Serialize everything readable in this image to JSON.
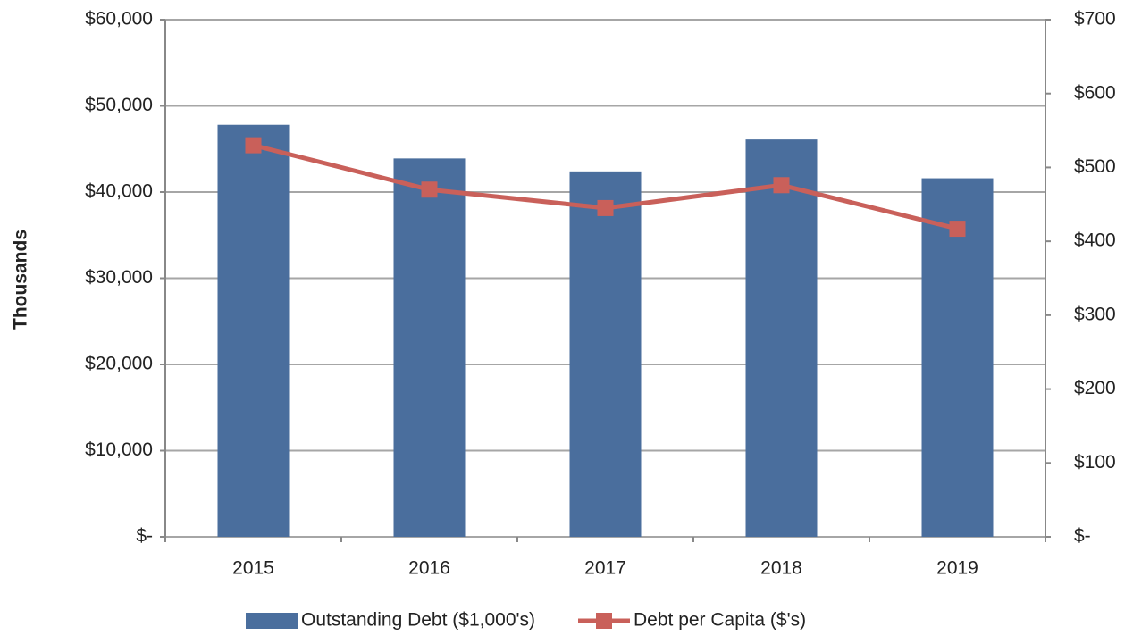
{
  "chart_data": {
    "type": "bar_line",
    "y_axis_label": "Thousands",
    "categories": [
      "2015",
      "2016",
      "2017",
      "2018",
      "2019"
    ],
    "series": [
      {
        "name": "Outstanding Debt ($1,000's)",
        "type": "bar",
        "color": "#4a6e9d",
        "values": [
          47800,
          43900,
          42400,
          46100,
          41600
        ]
      },
      {
        "name": "Debt per Capita ($'s)",
        "type": "line",
        "axis": "y2",
        "color": "#c9605a",
        "values": [
          530,
          470,
          445,
          476,
          417
        ]
      }
    ],
    "ylim": [
      0,
      60000
    ],
    "yticks": [
      {
        "value": 0,
        "label": "$-"
      },
      {
        "value": 10000,
        "label": "$10,000"
      },
      {
        "value": 20000,
        "label": "$20,000"
      },
      {
        "value": 30000,
        "label": "$30,000"
      },
      {
        "value": 40000,
        "label": "$40,000"
      },
      {
        "value": 50000,
        "label": "$50,000"
      },
      {
        "value": 60000,
        "label": "$60,000"
      }
    ],
    "y2lim": [
      0,
      700
    ],
    "y2ticks": [
      {
        "value": 0,
        "label": "$-"
      },
      {
        "value": 100,
        "label": "$100"
      },
      {
        "value": 200,
        "label": "$200"
      },
      {
        "value": 300,
        "label": "$300"
      },
      {
        "value": 400,
        "label": "$400"
      },
      {
        "value": 500,
        "label": "$500"
      },
      {
        "value": 600,
        "label": "$600"
      },
      {
        "value": 700,
        "label": "$700"
      }
    ],
    "grid": true,
    "legend": "bottom"
  }
}
